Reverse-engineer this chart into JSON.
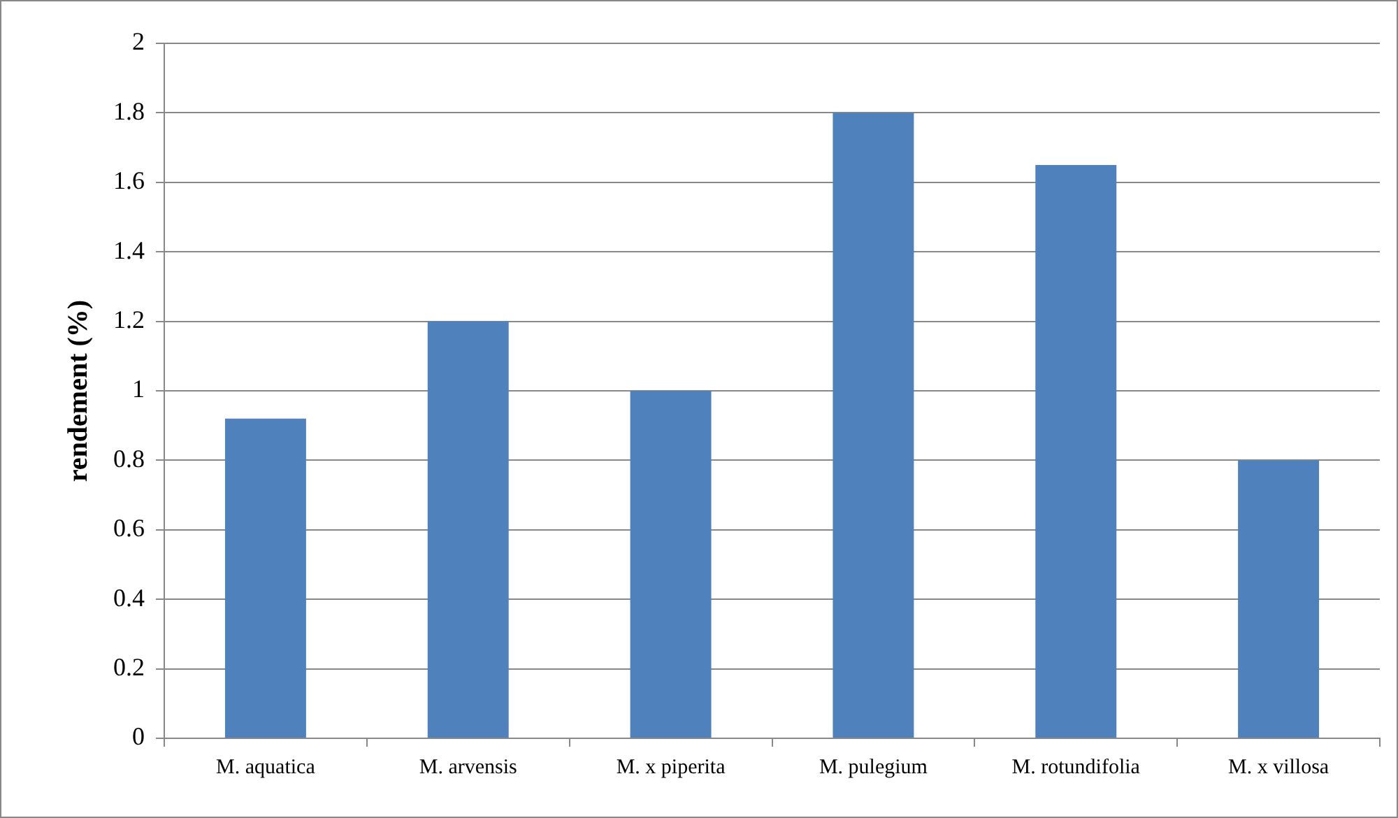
{
  "chart_data": {
    "type": "bar",
    "ylabel": "rendement (%)",
    "categories": [
      "M. aquatica",
      "M. arvensis",
      "M. x piperita",
      "M. pulegium",
      "M. rotundifolia",
      "M. x villosa"
    ],
    "values": [
      0.92,
      1.2,
      1.0,
      1.8,
      1.65,
      0.8
    ],
    "color": "#4f81bd",
    "ylim": [
      0,
      2
    ],
    "yticks": [
      0,
      0.2,
      0.4,
      0.6,
      0.8,
      1,
      1.2,
      1.4,
      1.6,
      1.8,
      2
    ],
    "grid": "y",
    "legend": false
  }
}
